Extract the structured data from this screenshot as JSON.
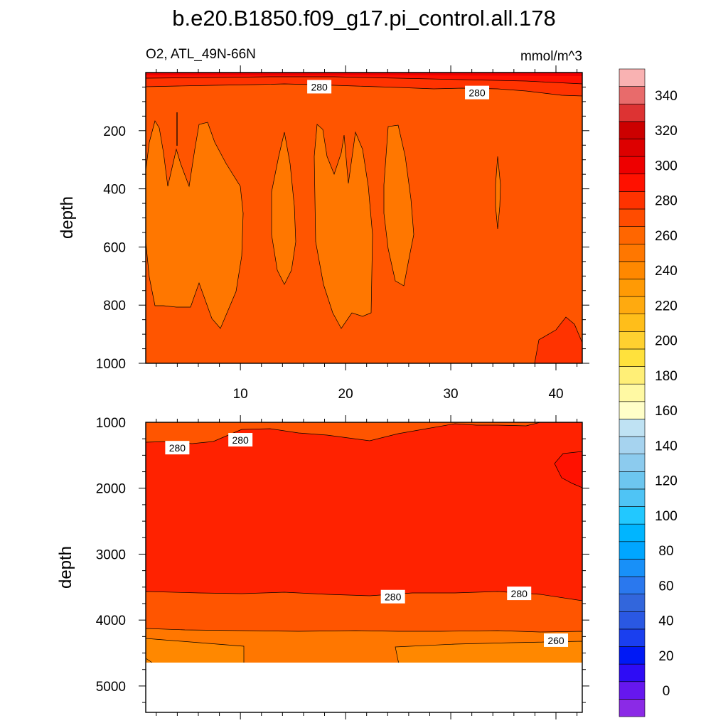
{
  "chart_data": {
    "type": "contour",
    "title": "b.e20.B1850.f09_g17.pi_control.all.178",
    "subtitle_left": "O2, ATL_49N-66N",
    "subtitle_right": "mmol/m^3",
    "ylabel": "depth",
    "xlabel": "",
    "x_ticks": [
      "10",
      "20",
      "30",
      "40"
    ],
    "x_tick_values": [
      10,
      20,
      30,
      40
    ],
    "xlim": [
      1,
      42.5
    ],
    "panels": [
      {
        "name": "upper",
        "ylim": [
          0,
          1000
        ],
        "y_ticks": [
          "200",
          "400",
          "600",
          "800",
          "1000"
        ],
        "y_tick_values": [
          200,
          400,
          600,
          800,
          1000
        ],
        "contour_labels": [
          {
            "text": "280",
            "x": 17.5,
            "y": 50
          },
          {
            "text": "280",
            "x": 32.5,
            "y": 70
          }
        ]
      },
      {
        "name": "lower",
        "ylim": [
          1000,
          5400
        ],
        "y_ticks": [
          "1000",
          "2000",
          "3000",
          "4000",
          "5000"
        ],
        "y_tick_values": [
          1000,
          2000,
          3000,
          4000,
          5000
        ],
        "contour_labels": [
          {
            "text": "280",
            "x": 4,
            "y": 1390
          },
          {
            "text": "280",
            "x": 10,
            "y": 1270
          },
          {
            "text": "280",
            "x": 24.5,
            "y": 3650
          },
          {
            "text": "280",
            "x": 36.5,
            "y": 3600
          },
          {
            "text": "260",
            "x": 40,
            "y": 4310
          }
        ]
      }
    ],
    "colorbar": {
      "levels": [
        -10,
        0,
        10,
        20,
        30,
        40,
        50,
        60,
        70,
        80,
        90,
        100,
        110,
        120,
        130,
        140,
        150,
        160,
        170,
        180,
        190,
        200,
        210,
        220,
        230,
        240,
        250,
        260,
        270,
        280,
        290,
        300,
        310,
        320,
        330,
        340,
        350,
        360
      ],
      "colors": [
        "#8b2ae6",
        "#6617ef",
        "#2e0cf5",
        "#0019f5",
        "#1a3fef",
        "#2a58e3",
        "#3266dc",
        "#2a78ee",
        "#1890f8",
        "#00a6ff",
        "#00b5ff",
        "#22c8ff",
        "#4fc4f5",
        "#6dc6ef",
        "#8ccbee",
        "#a6d3ef",
        "#bfe2f3",
        "#fffec8",
        "#fff9a3",
        "#ffef77",
        "#ffe13c",
        "#ffd130",
        "#ffbe1a",
        "#ffaa0f",
        "#ff9a05",
        "#ff8800",
        "#ff7700",
        "#ff6600",
        "#ff4c00",
        "#ff3300",
        "#ff1100",
        "#ee0000",
        "#dd0000",
        "#cc0000",
        "#dd3333",
        "#e86b6b",
        "#f9b2b2"
      ],
      "tick_labels": [
        "0",
        "20",
        "40",
        "60",
        "80",
        "100",
        "120",
        "140",
        "160",
        "180",
        "200",
        "220",
        "240",
        "260",
        "280",
        "300",
        "320",
        "340"
      ],
      "tick_values": [
        0,
        20,
        40,
        60,
        80,
        100,
        120,
        140,
        160,
        180,
        200,
        220,
        240,
        260,
        280,
        300,
        320,
        340
      ]
    }
  }
}
